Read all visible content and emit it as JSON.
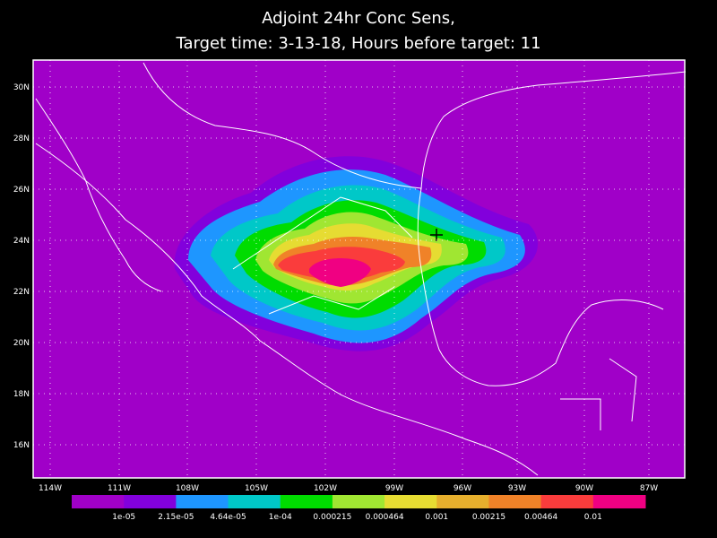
{
  "header": {
    "title_line1": "Adjoint 24hr Conc Sens,",
    "title_line2": "Target time: 3-13-18, Hours before target: 11"
  },
  "map": {
    "background_color": "#a000c8",
    "lat_labels": [
      "30N",
      "28N",
      "26N",
      "24N",
      "22N",
      "20N",
      "18N",
      "16N"
    ],
    "lon_labels": [
      "114W",
      "111W",
      "108W",
      "105W",
      "102W",
      "99W",
      "96W",
      "93W",
      "90W",
      "87W"
    ]
  },
  "colorbar": {
    "colors": [
      "#a000c8",
      "#8200dc",
      "#1e96ff",
      "#00c8c8",
      "#00dc00",
      "#a0e632",
      "#e6dc32",
      "#e6af2d",
      "#f08228",
      "#fa3c3c",
      "#f00082"
    ],
    "labels": [
      "1e-05",
      "2.15e-05",
      "4.64e-05",
      "1e-04",
      "0.000215",
      "0.000464",
      "0.001",
      "0.00215",
      "0.00464",
      "0.01"
    ]
  }
}
